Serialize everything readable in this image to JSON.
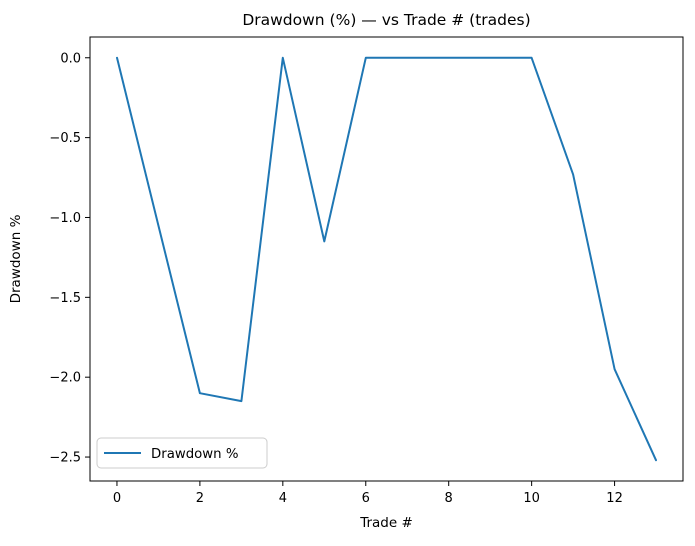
{
  "chart_data": {
    "type": "line",
    "title": "Drawdown (%) — vs Trade # (trades)",
    "xlabel": "Trade #",
    "ylabel": "Drawdown %",
    "series": [
      {
        "name": "Drawdown %",
        "color": "#1f77b4",
        "x": [
          0,
          1,
          2,
          3,
          4,
          5,
          6,
          7,
          8,
          9,
          10,
          11,
          12,
          13
        ],
        "values": [
          0.0,
          -1.05,
          -2.1,
          -2.15,
          0.0,
          -1.15,
          0.0,
          0.0,
          0.0,
          0.0,
          0.0,
          -0.73,
          -1.95,
          -2.52
        ]
      }
    ],
    "xlim": [
      -0.65,
      13.65
    ],
    "ylim": [
      -2.65,
      0.13
    ],
    "xticks": [
      0,
      2,
      4,
      6,
      8,
      10,
      12
    ],
    "xtick_labels": [
      "0",
      "2",
      "4",
      "6",
      "8",
      "10",
      "12"
    ],
    "yticks": [
      0.0,
      -0.5,
      -1.0,
      -1.5,
      -2.0,
      -2.5
    ],
    "ytick_labels": [
      "0.0",
      "−0.5",
      "−1.0",
      "−1.5",
      "−2.0",
      "−2.5"
    ],
    "grid": false,
    "legend": {
      "position": "lower left",
      "entries": [
        "Drawdown %"
      ]
    }
  },
  "figure": {
    "background": "#ffffff",
    "spine_color": "#000000",
    "tick_color": "#000000",
    "legend_border_color": "#cccccc",
    "accent": "#1f77b4"
  }
}
